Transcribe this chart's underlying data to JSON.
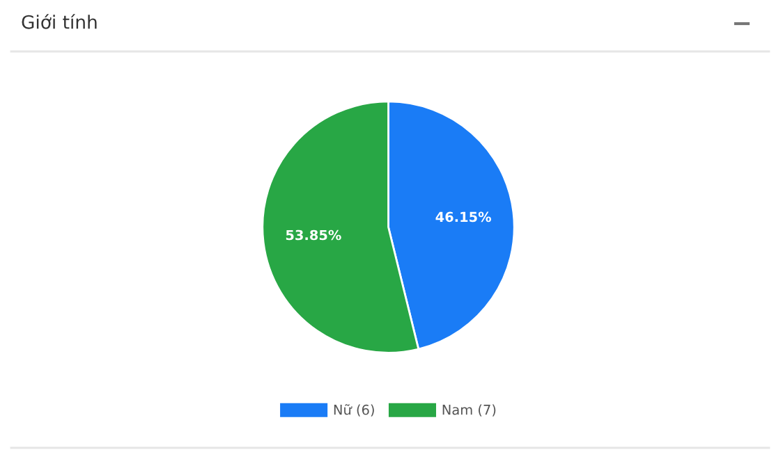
{
  "chart_data": {
    "type": "pie",
    "title": "Giới tính",
    "categories": [
      "Nữ (6)",
      "Nam (7)"
    ],
    "values": [
      46.15,
      53.85
    ],
    "colors": [
      "#1a7cf6",
      "#28a745"
    ],
    "value_labels": [
      "46.15%",
      "53.85%"
    ],
    "legend": "bottom"
  }
}
